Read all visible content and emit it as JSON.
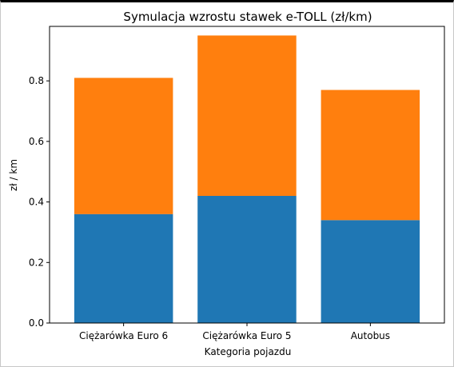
{
  "chart_data": {
    "type": "bar",
    "stacked": true,
    "title": "Symulacja wzrostu stawek e-TOLL (zł/km)",
    "xlabel": "Kategoria pojazdu",
    "ylabel": "zł / km",
    "categories": [
      "Ciężarówka Euro 6",
      "Ciężarówka Euro 5",
      "Autobus"
    ],
    "series": [
      {
        "values": [
          0.36,
          0.42,
          0.34
        ],
        "color": "#1f77b4"
      },
      {
        "values": [
          0.45,
          0.53,
          0.43
        ],
        "color": "#ff7f0e"
      }
    ],
    "ylim": [
      0,
      0.98
    ],
    "yticks": [
      0.0,
      0.2,
      0.4,
      0.6,
      0.8
    ],
    "ytick_labels": [
      "0.0",
      "0.2",
      "0.4",
      "0.6",
      "0.8"
    ],
    "grid": false,
    "legend": false
  }
}
